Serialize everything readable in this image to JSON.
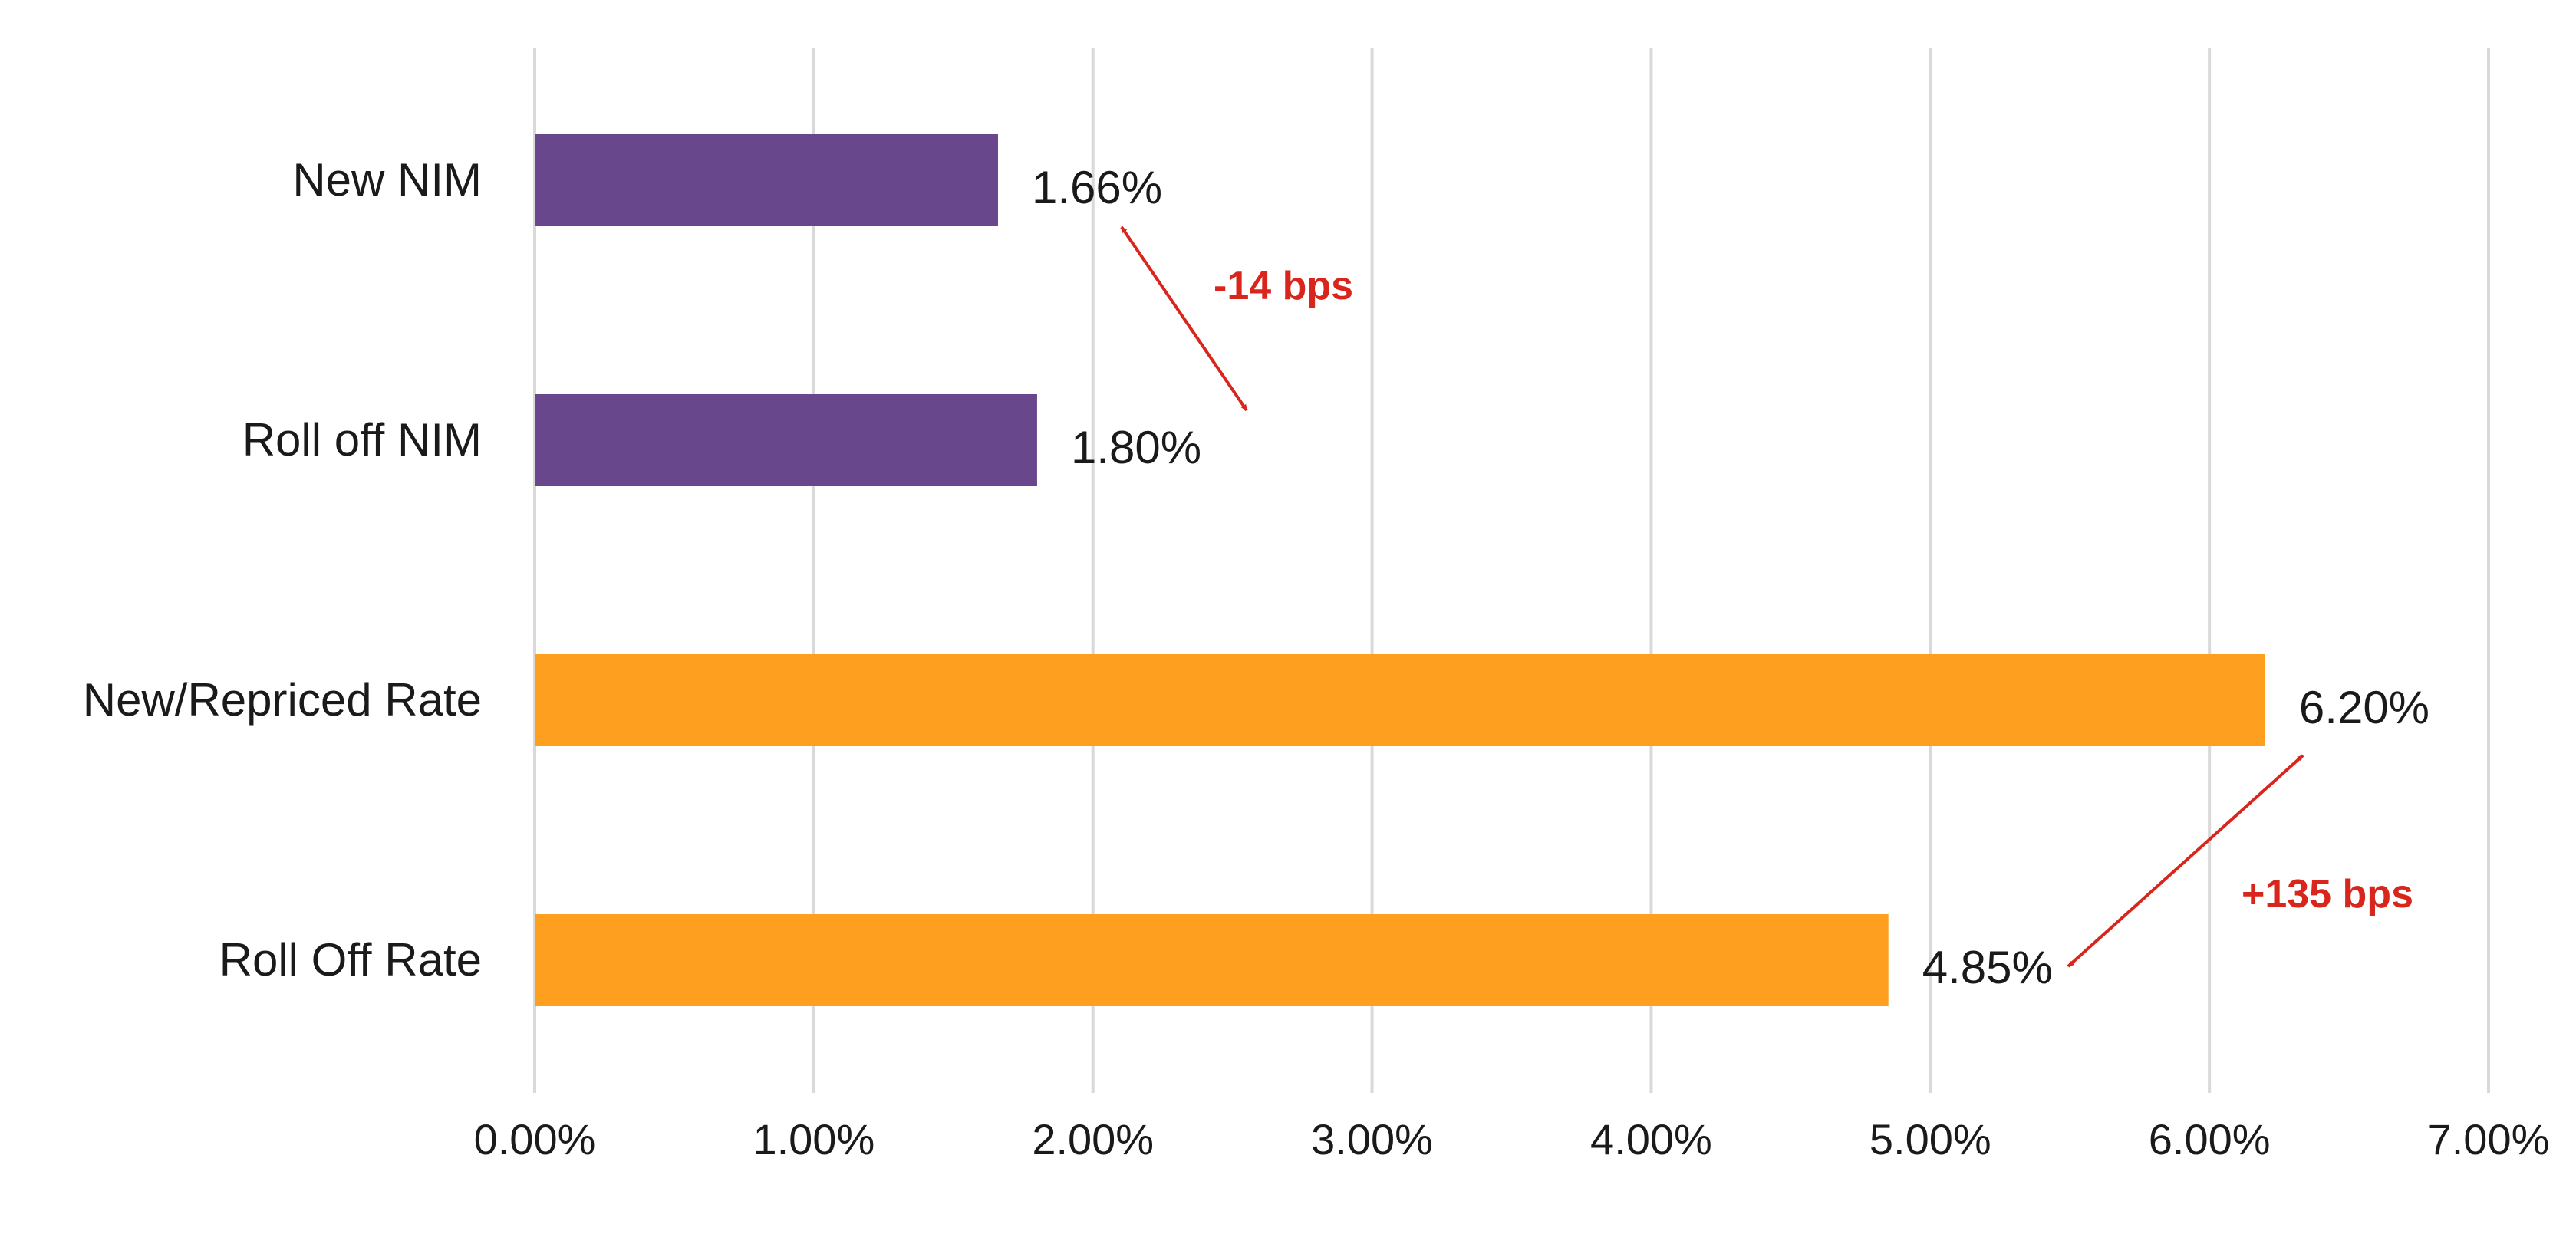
{
  "chart_data": {
    "type": "bar",
    "orientation": "horizontal",
    "categories": [
      "New NIM",
      "Roll off NIM",
      "New/Repriced Rate",
      "Roll Off Rate"
    ],
    "values": [
      1.66,
      1.8,
      6.2,
      4.85
    ],
    "value_labels": [
      "1.66%",
      "1.80%",
      "6.20%",
      "4.85%"
    ],
    "bar_colors": [
      "#68478d",
      "#68478d",
      "#ff9f1f",
      "#ff9f1f"
    ],
    "xlim": [
      0,
      7
    ],
    "x_ticks": [
      0,
      1,
      2,
      3,
      4,
      5,
      6,
      7
    ],
    "x_tick_labels": [
      "0.00%",
      "1.00%",
      "2.00%",
      "3.00%",
      "4.00%",
      "5.00%",
      "6.00%",
      "7.00%"
    ],
    "grid": true,
    "grid_color": "#d9d9d9",
    "annotations": [
      {
        "text": "-14 bps",
        "color": "#d9261c",
        "from_category": "New NIM",
        "to_category": "Roll off NIM"
      },
      {
        "text": "+135 bps",
        "color": "#d9261c",
        "from_category": "New/Repriced Rate",
        "to_category": "Roll Off Rate"
      }
    ],
    "title": "",
    "xlabel": "",
    "ylabel": ""
  }
}
